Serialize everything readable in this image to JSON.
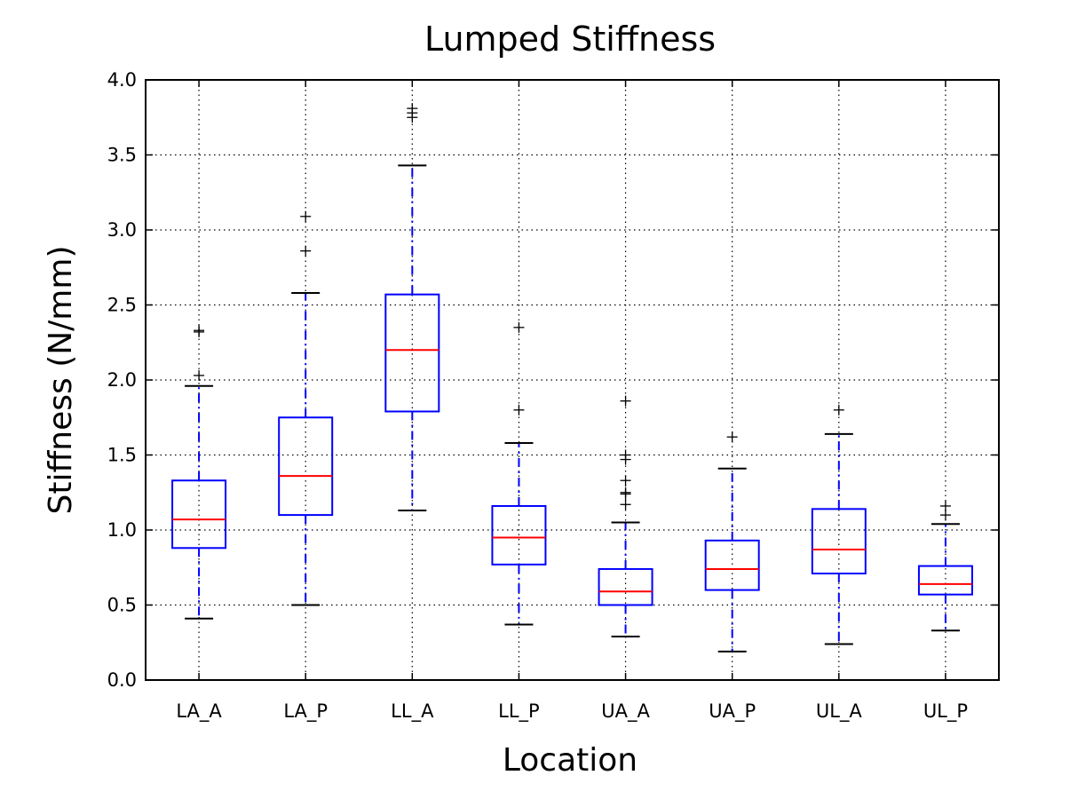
{
  "chart_data": {
    "type": "box",
    "title": "Lumped Stiffness",
    "xlabel": "Location",
    "ylabel": "Stiffness (N/mm)",
    "ylim": [
      0.0,
      4.0
    ],
    "yticks": [
      "0.0",
      "0.5",
      "1.0",
      "1.5",
      "2.0",
      "2.5",
      "3.0",
      "3.5",
      "4.0"
    ],
    "grid": true,
    "categories": [
      "LA_A",
      "LA_P",
      "LL_A",
      "LL_P",
      "UA_A",
      "UA_P",
      "UL_A",
      "UL_P"
    ],
    "boxes": [
      {
        "whisker_low": 0.41,
        "q1": 0.88,
        "median": 1.07,
        "q3": 1.33,
        "whisker_high": 1.96,
        "outliers": [
          2.03,
          2.32,
          2.33
        ]
      },
      {
        "whisker_low": 0.5,
        "q1": 1.1,
        "median": 1.36,
        "q3": 1.75,
        "whisker_high": 2.58,
        "outliers": [
          2.86,
          3.09
        ]
      },
      {
        "whisker_low": 1.13,
        "q1": 1.79,
        "median": 2.2,
        "q3": 2.57,
        "whisker_high": 3.43,
        "outliers": [
          3.75,
          3.78,
          3.81
        ]
      },
      {
        "whisker_low": 0.37,
        "q1": 0.77,
        "median": 0.95,
        "q3": 1.16,
        "whisker_high": 1.58,
        "outliers": [
          1.8,
          2.35
        ]
      },
      {
        "whisker_low": 0.29,
        "q1": 0.5,
        "median": 0.59,
        "q3": 0.74,
        "whisker_high": 1.05,
        "outliers": [
          1.17,
          1.24,
          1.25,
          1.33,
          1.47,
          1.5,
          1.86
        ]
      },
      {
        "whisker_low": 0.19,
        "q1": 0.6,
        "median": 0.74,
        "q3": 0.93,
        "whisker_high": 1.41,
        "outliers": [
          1.62
        ]
      },
      {
        "whisker_low": 0.24,
        "q1": 0.71,
        "median": 0.87,
        "q3": 1.14,
        "whisker_high": 1.64,
        "outliers": [
          1.8
        ]
      },
      {
        "whisker_low": 0.33,
        "q1": 0.57,
        "median": 0.64,
        "q3": 0.76,
        "whisker_high": 1.04,
        "outliers": [
          1.1,
          1.16
        ]
      }
    ],
    "colors": {
      "box": "#0000ff",
      "median": "#ff0000",
      "cap": "#000000",
      "flier": "#000000"
    }
  }
}
